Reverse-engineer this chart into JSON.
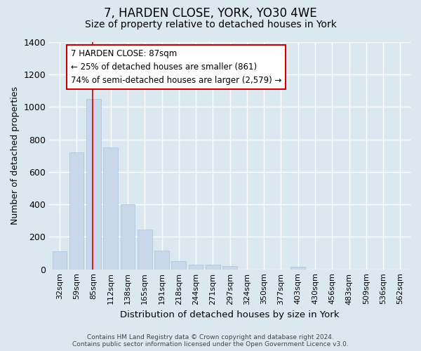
{
  "title": "7, HARDEN CLOSE, YORK, YO30 4WE",
  "subtitle": "Size of property relative to detached houses in York",
  "xlabel": "Distribution of detached houses by size in York",
  "ylabel": "Number of detached properties",
  "categories": [
    "32sqm",
    "59sqm",
    "85sqm",
    "112sqm",
    "138sqm",
    "165sqm",
    "191sqm",
    "218sqm",
    "244sqm",
    "271sqm",
    "297sqm",
    "324sqm",
    "350sqm",
    "377sqm",
    "403sqm",
    "430sqm",
    "456sqm",
    "483sqm",
    "509sqm",
    "536sqm",
    "562sqm"
  ],
  "values": [
    110,
    720,
    1050,
    750,
    400,
    245,
    115,
    50,
    28,
    30,
    20,
    0,
    0,
    0,
    15,
    0,
    0,
    0,
    0,
    0,
    0
  ],
  "bar_color": "#c8d8ea",
  "bar_edge_color": "#a8c4dc",
  "property_bar_index": 2,
  "vline_color": "#cc0000",
  "annotation_line1": "7 HARDEN CLOSE: 87sqm",
  "annotation_line2": "← 25% of detached houses are smaller (861)",
  "annotation_line3": "74% of semi-detached houses are larger (2,579) →",
  "annotation_box_color": "#ffffff",
  "annotation_box_edge_color": "#cc0000",
  "ylim": [
    0,
    1400
  ],
  "yticks": [
    0,
    200,
    400,
    600,
    800,
    1000,
    1200,
    1400
  ],
  "footer": "Contains HM Land Registry data © Crown copyright and database right 2024.\nContains public sector information licensed under the Open Government Licence v3.0.",
  "bg_color": "#dce8f0",
  "plot_bg_color": "#dce8f0",
  "grid_color": "#ffffff",
  "title_fontsize": 12,
  "subtitle_fontsize": 10,
  "title_fontweight": "normal"
}
